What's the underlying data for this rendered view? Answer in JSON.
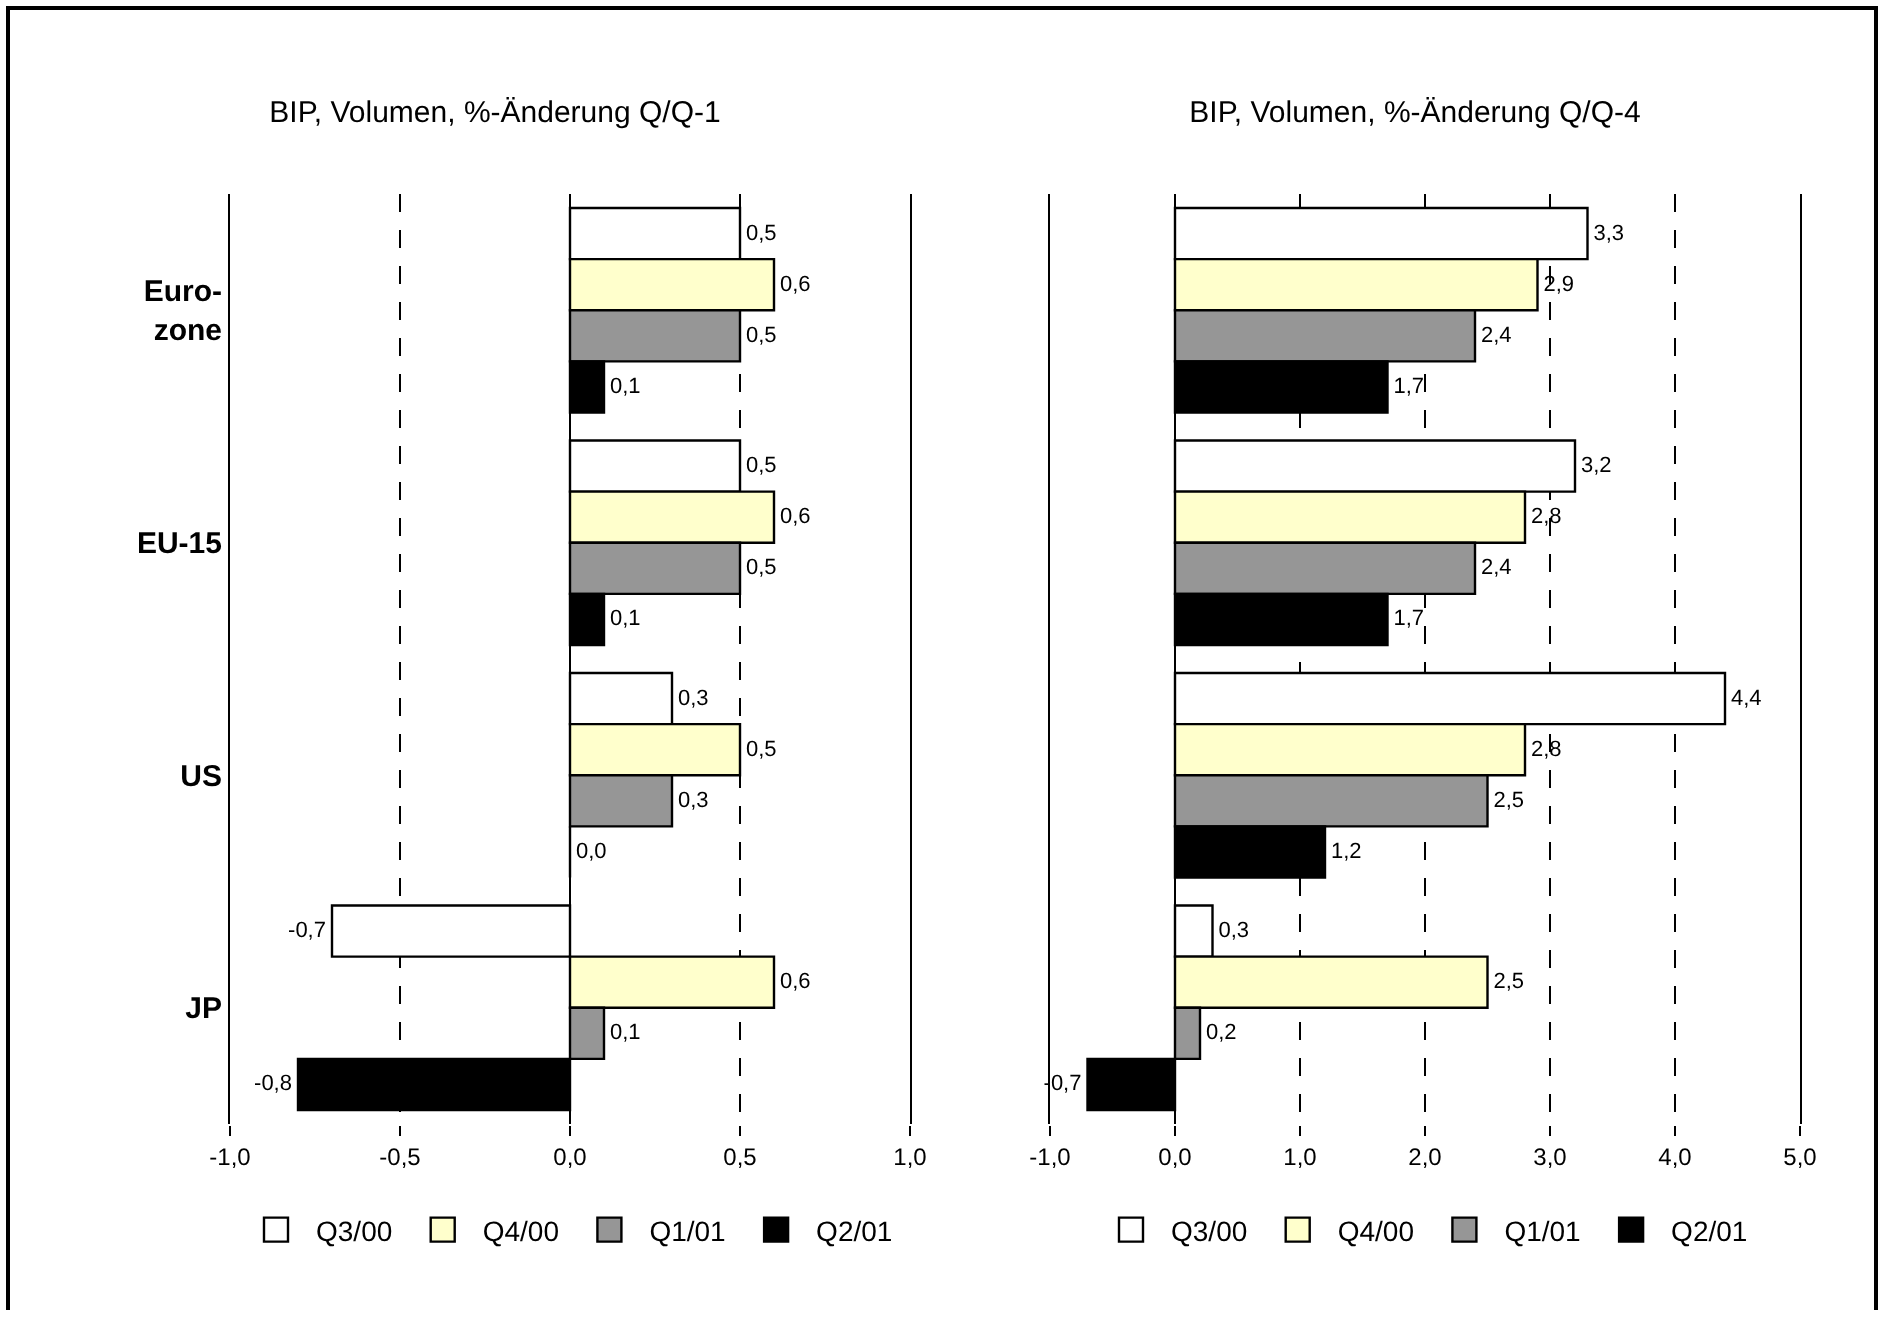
{
  "chart_data": [
    {
      "type": "bar",
      "orientation": "horizontal",
      "title": "BIP, Volumen, %-Änderung Q/Q-1",
      "categories": [
        "Euro-\nzone",
        "EU-15",
        "US",
        "JP"
      ],
      "series": [
        {
          "name": "Q3/00",
          "color": "#ffffff",
          "values": [
            0.5,
            0.5,
            0.3,
            -0.7
          ],
          "value_labels": [
            "0,5",
            "0,5",
            "0,3",
            "-0,7"
          ]
        },
        {
          "name": "Q4/00",
          "color": "#ffffcc",
          "values": [
            0.6,
            0.6,
            0.5,
            0.6
          ],
          "value_labels": [
            "0,6",
            "0,6",
            "0,5",
            "0,6"
          ]
        },
        {
          "name": "Q1/01",
          "color": "#969696",
          "values": [
            0.5,
            0.5,
            0.3,
            0.1
          ],
          "value_labels": [
            "0,5",
            "0,5",
            "0,3",
            "0,1"
          ]
        },
        {
          "name": "Q2/01",
          "color": "#000000",
          "values": [
            0.1,
            0.1,
            0.0,
            -0.8
          ],
          "value_labels": [
            "0,1",
            "0,1",
            "0,0",
            "-0,8"
          ]
        }
      ],
      "xlim": [
        -1,
        1
      ],
      "xticks": [
        {
          "value": -1,
          "label": "-1,0"
        },
        {
          "value": -0.5,
          "label": "-0,5"
        },
        {
          "value": 0,
          "label": "0,0"
        },
        {
          "value": 0.5,
          "label": "0,5"
        },
        {
          "value": 1,
          "label": "1,0"
        }
      ],
      "grid": "x",
      "legend": "bottom"
    },
    {
      "type": "bar",
      "orientation": "horizontal",
      "title": "BIP, Volumen, %-Änderung Q/Q-4",
      "categories": [
        null,
        null,
        null,
        null
      ],
      "series": [
        {
          "name": "Q3/00",
          "color": "#ffffff",
          "values": [
            3.3,
            3.2,
            4.4,
            0.3
          ],
          "value_labels": [
            "3,3",
            "3,2",
            "4,4",
            "0,3"
          ]
        },
        {
          "name": "Q4/00",
          "color": "#ffffcc",
          "values": [
            2.9,
            2.8,
            2.8,
            2.5
          ],
          "value_labels": [
            "2,9",
            "2,8",
            "2,8",
            "2,5"
          ]
        },
        {
          "name": "Q1/01",
          "color": "#969696",
          "values": [
            2.4,
            2.4,
            2.5,
            0.2
          ],
          "value_labels": [
            "2,4",
            "2,4",
            "2,5",
            "0,2"
          ]
        },
        {
          "name": "Q2/01",
          "color": "#000000",
          "values": [
            1.7,
            1.7,
            1.2,
            -0.7
          ],
          "value_labels": [
            "1,7",
            "1,7",
            "1,2",
            "-0,7"
          ]
        }
      ],
      "xlim": [
        -1,
        5
      ],
      "xticks": [
        {
          "value": -1,
          "label": "-1,0"
        },
        {
          "value": 0,
          "label": "0,0"
        },
        {
          "value": 1,
          "label": "1,0"
        },
        {
          "value": 2,
          "label": "2,0"
        },
        {
          "value": 3,
          "label": "3,0"
        },
        {
          "value": 4,
          "label": "4,0"
        },
        {
          "value": 5,
          "label": "5,0"
        }
      ],
      "grid": "x",
      "legend": "bottom",
      "tick_labels": "x"
    }
  ]
}
